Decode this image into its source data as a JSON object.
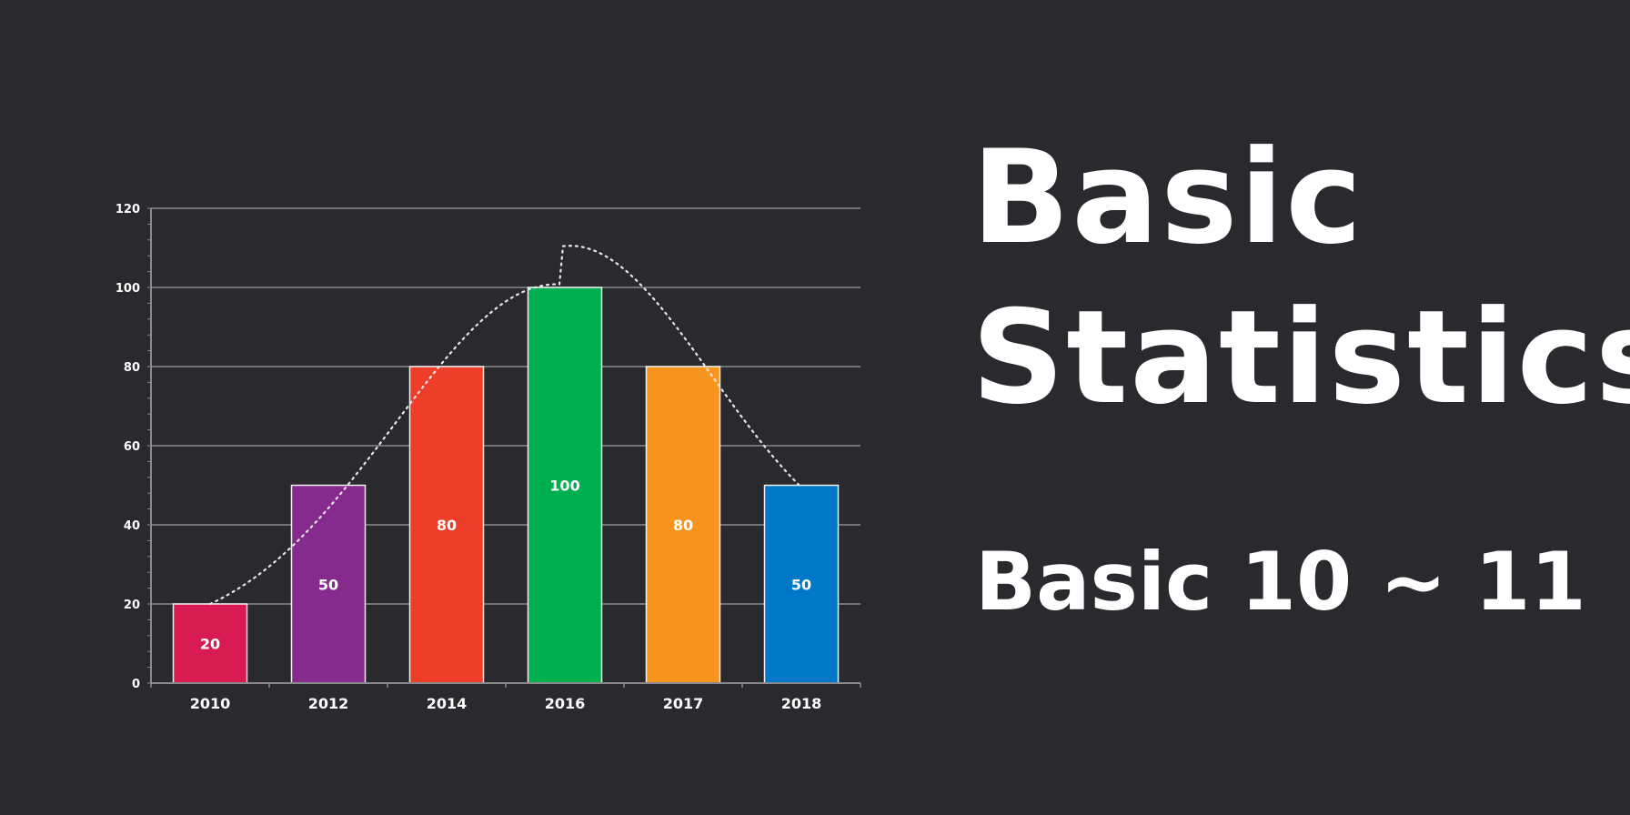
{
  "title": {
    "line1": "Basic",
    "line2": "Statistics"
  },
  "subtitle": "Basic 10 ~ 11",
  "colors": {
    "background": "#2a2a2e",
    "grid": "#8a8a8e",
    "text": "#ffffff",
    "curve": "#e6e6e6"
  },
  "chart_data": {
    "type": "bar",
    "categories": [
      "2010",
      "2012",
      "2014",
      "2016",
      "2017",
      "2018"
    ],
    "values": [
      20,
      50,
      80,
      100,
      80,
      50
    ],
    "data_labels": [
      "20",
      "50",
      "80",
      "100",
      "80",
      "50"
    ],
    "bar_colors": [
      "#d81b50",
      "#872a8e",
      "#ee3e2a",
      "#00b050",
      "#f7941d",
      "#0078c8"
    ],
    "ylim": [
      0,
      120
    ],
    "yticks": [
      "0",
      "20",
      "40",
      "60",
      "80",
      "100",
      "120"
    ],
    "grid": true,
    "overlay": "dotted curve"
  }
}
